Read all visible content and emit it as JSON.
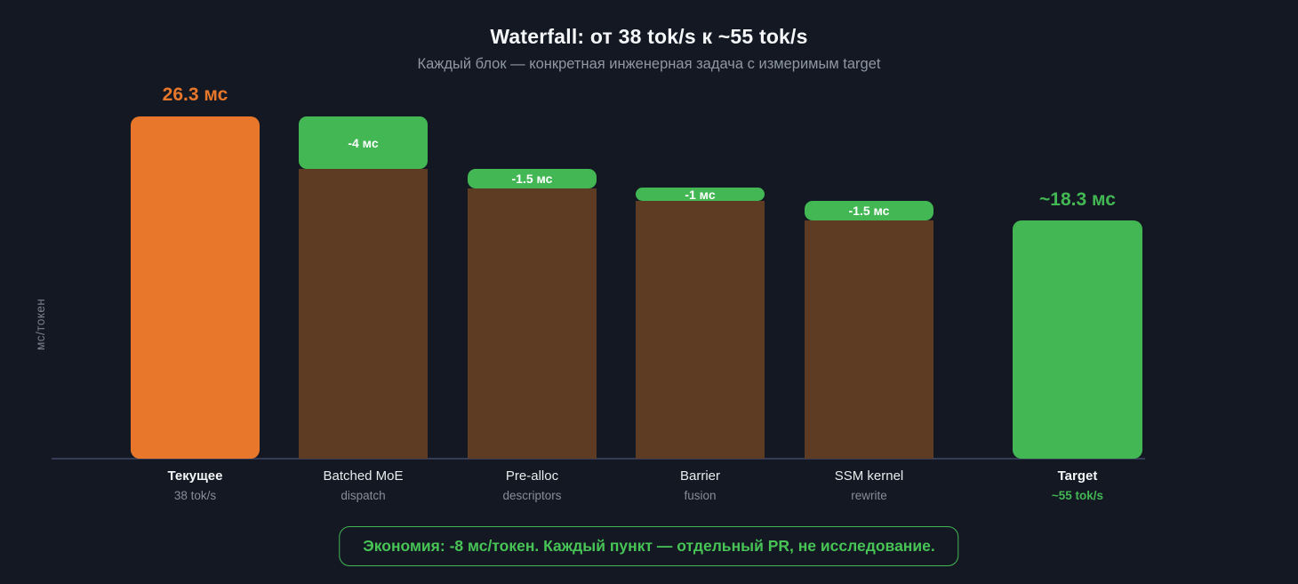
{
  "chart_data": {
    "type": "bar",
    "subtype": "waterfall",
    "title": "Waterfall: от 38 tok/s к ~55 tok/s",
    "subtitle": "Каждый блок — конкретная инженерная задача с измеримым target",
    "ylabel": "мс/токен",
    "unit": "мс",
    "start_value_ms": 26.3,
    "target_value_ms": 18.3,
    "total_savings_ms": -8,
    "bars": [
      {
        "label": "Текущее",
        "sublabel": "38 tok/s",
        "type": "start",
        "total_ms": 26.3,
        "value_label": "26.3 мс"
      },
      {
        "label": "Batched MoE",
        "sublabel": "dispatch",
        "type": "delta",
        "delta_ms": -4,
        "delta_label": "-4 мс",
        "remaining_ms": 22.3
      },
      {
        "label": "Pre-alloc",
        "sublabel": "descriptors",
        "type": "delta",
        "delta_ms": -1.5,
        "delta_label": "-1.5 мс",
        "remaining_ms": 20.8
      },
      {
        "label": "Barrier",
        "sublabel": "fusion",
        "type": "delta",
        "delta_ms": -1,
        "delta_label": "-1 мс",
        "remaining_ms": 19.8
      },
      {
        "label": "SSM kernel",
        "sublabel": "rewrite",
        "type": "delta",
        "delta_ms": -1.5,
        "delta_label": "-1.5 мс",
        "remaining_ms": 18.3
      },
      {
        "label": "Target",
        "sublabel": "~55 tok/s",
        "type": "end",
        "total_ms": 18.3,
        "value_label": "~18.3 мс"
      }
    ],
    "footer_note": "Экономия: -8 мс/токен. Каждый пункт — отдельный PR, не исследование.",
    "legend": null,
    "grid": false,
    "colors": {
      "start_bar": "#e8772b",
      "delta_segment": "#43b754",
      "remainder_bar": "#5e3b23",
      "end_bar": "#43b754",
      "background": "#131822",
      "axis_line": "#363c55"
    }
  }
}
